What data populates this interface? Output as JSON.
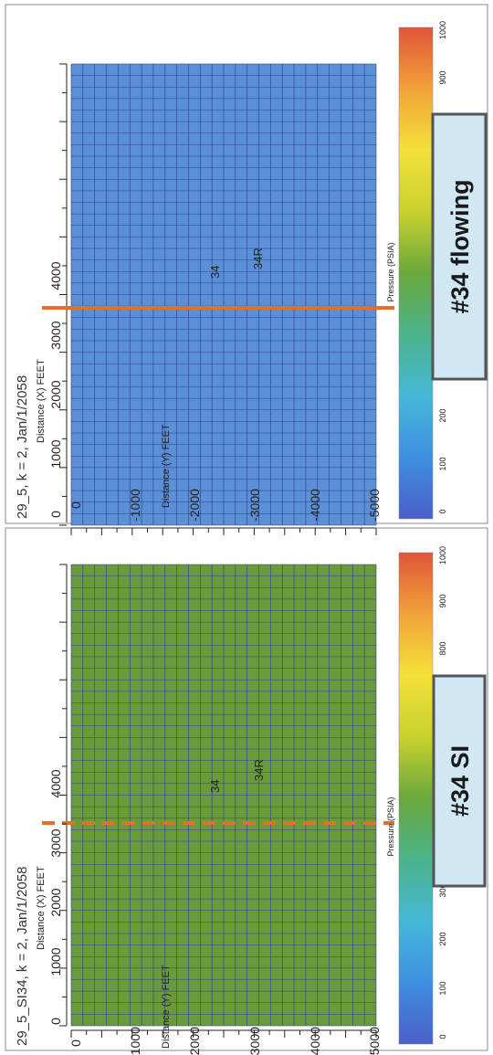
{
  "panels": [
    {
      "title": "29_5_SI34, k = 2, Jan/1/2058",
      "x_axis_label": "Distance (X)  FEET",
      "y_axis_label": "Distance (Y)  FEET",
      "x_ticks": [
        "0",
        "1000",
        "2000",
        "3000",
        "4000"
      ],
      "y_ticks": [
        "0",
        "-1000",
        "-2000",
        "-3000",
        "-4000",
        "-5000"
      ],
      "wells": [
        "34",
        "34R"
      ],
      "field_color": "#6a9a3c",
      "divider_style": "dashed",
      "colorbar": {
        "label": "Pressure (PSIA)",
        "ticks": [
          "0",
          "100",
          "200",
          "300",
          "800",
          "900",
          "1000"
        ]
      },
      "annotation": "#34 SI"
    },
    {
      "title": "29_5, k = 2, Jan/1/2058",
      "x_axis_label": "Distance (X)  FEET",
      "y_axis_label": "Distance (Y)  FEET",
      "x_ticks": [
        "0",
        "1000",
        "2000",
        "3000",
        "4000"
      ],
      "y_ticks": [
        "0",
        "-1000",
        "-2000",
        "-3000",
        "-4000",
        "-5000"
      ],
      "wells": [
        "34",
        "34R"
      ],
      "field_color": "#5b8fd6",
      "divider_style": "solid",
      "colorbar": {
        "label": "Pressure (PSIA)",
        "ticks": [
          "0",
          "100",
          "200",
          "900",
          "1000"
        ]
      },
      "annotation": "#34 flowing"
    }
  ],
  "colors": {
    "grid_line": "#2b3f9a",
    "divider": "#e0702a",
    "annotation_fill": "#cfe8f3",
    "annotation_border": "#555555",
    "colorbar_stops": [
      "#4a5fc9",
      "#3f8fe0",
      "#45b8d8",
      "#4bb38a",
      "#6aa83c",
      "#c9d12e",
      "#f4e13a",
      "#f2a23a",
      "#e0543a"
    ]
  }
}
